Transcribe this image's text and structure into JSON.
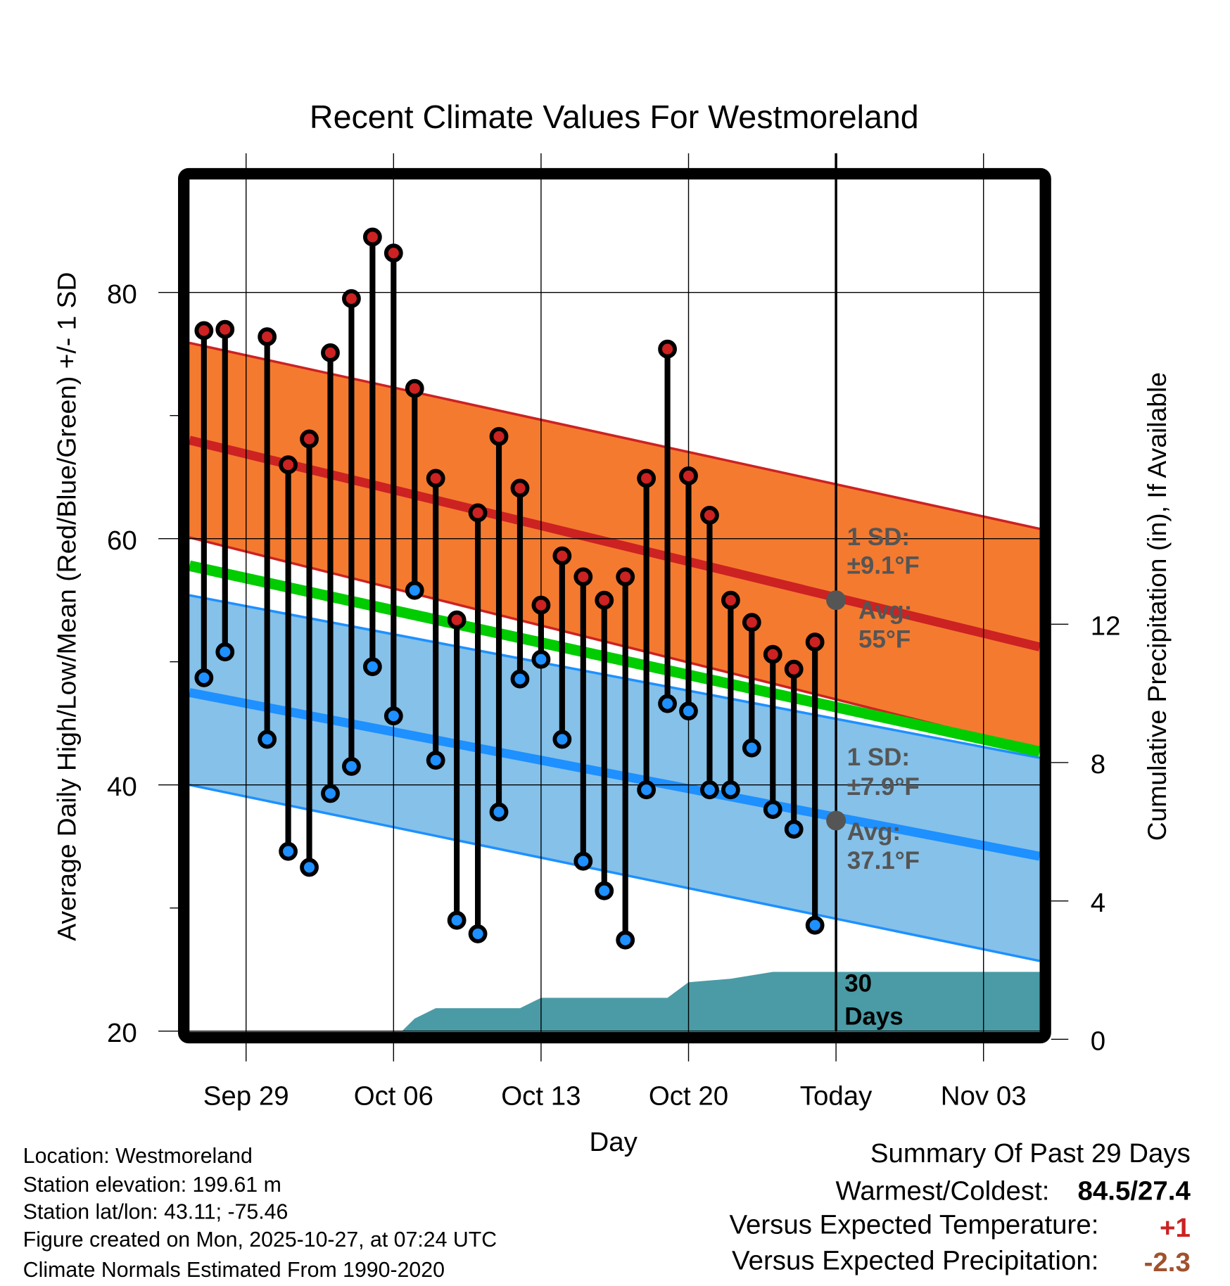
{
  "chart_data": {
    "type": "line",
    "title": "Recent Climate Values For Westmoreland",
    "xlabel": "Day",
    "ylabel": "Average Daily High/Low/Mean (Red/Blue/Green) +/- 1 SD",
    "ylabel_right": "Cumulative Precipitation (in), If Available",
    "x_unit": "days relative to Sep 29",
    "xlim": [
      -2.7,
      37.7
    ],
    "ylim": [
      20,
      90
    ],
    "ylim_right": [
      0,
      16.6
    ],
    "x_ticks": [
      {
        "day": 0,
        "label": "Sep 29"
      },
      {
        "day": 7,
        "label": "Oct 06"
      },
      {
        "day": 14,
        "label": "Oct 13"
      },
      {
        "day": 21,
        "label": "Oct 20"
      },
      {
        "day": 28,
        "label": "Today"
      },
      {
        "day": 35,
        "label": "Nov 03"
      }
    ],
    "y_ticks": [
      20,
      40,
      60,
      80
    ],
    "y_minor_ticks": [
      30,
      50,
      70
    ],
    "y_ticks_right": [
      0,
      4,
      8,
      12
    ],
    "grid": true,
    "today_day": 28,
    "days": [
      -2,
      -1,
      1,
      2,
      3,
      4,
      5,
      6,
      7,
      8,
      9,
      10,
      11,
      12,
      13,
      14,
      15,
      16,
      17,
      18,
      19,
      20,
      21,
      22,
      23,
      24,
      25,
      26,
      27
    ],
    "highs": [
      76.9,
      77.0,
      76.4,
      66.0,
      68.1,
      75.1,
      79.5,
      84.5,
      83.2,
      72.2,
      64.9,
      53.4,
      62.1,
      68.3,
      64.1,
      54.6,
      58.6,
      56.9,
      55.0,
      56.9,
      64.9,
      75.4,
      65.1,
      61.9,
      55.0,
      53.2,
      50.6,
      49.4,
      51.6
    ],
    "lows": [
      48.7,
      50.8,
      43.7,
      34.6,
      33.3,
      39.3,
      41.5,
      49.6,
      45.6,
      55.8,
      42.0,
      29.0,
      27.9,
      37.8,
      48.6,
      50.2,
      43.7,
      33.8,
      31.4,
      27.4,
      39.6,
      46.6,
      46.0,
      39.6,
      39.6,
      43.0,
      38.0,
      36.4,
      28.6
    ],
    "normals": {
      "high_avg": [
        68.0,
        51.2
      ],
      "high_upper": [
        75.9,
        60.8
      ],
      "high_lower": [
        60.1,
        42.8
      ],
      "mean": [
        57.8,
        42.7
      ],
      "low_avg": [
        47.5,
        34.2
      ],
      "low_upper": [
        55.4,
        42.2
      ],
      "low_lower": [
        40.0,
        25.7
      ]
    },
    "precip": {
      "days": [
        7.4,
        8,
        9,
        13,
        14,
        20,
        21,
        23,
        25,
        37.7
      ],
      "values": [
        0,
        0.6,
        0.9,
        0.9,
        1.2,
        1.2,
        1.65,
        1.75,
        1.95,
        1.95
      ]
    },
    "today_high_avg": 55,
    "today_low_avg": 37.1,
    "annotations": {
      "high_sd_line1": "1 SD:",
      "high_sd_line2": "±9.1°F",
      "high_avg_line1": "Avg:",
      "high_avg_line2": "55°F",
      "low_sd_line1": "1 SD:",
      "low_sd_line2": "±7.9°F",
      "low_avg_line1": "Avg:",
      "low_avg_line2": "37.1°F",
      "precip_line1": "30",
      "precip_line2": "Days"
    }
  },
  "colors": {
    "orange_band": "#F47A30",
    "red": "#CC2222",
    "green": "#00CC00",
    "blue_band": "#85C1E9",
    "blue": "#1E90FF",
    "teal": "#4A9BA5",
    "positive": "#CC2222",
    "precip_deficit": "#A0522D"
  },
  "info": {
    "location": "Location: Westmoreland",
    "elevation": "Station elevation: 199.61 m",
    "latlon": "Station lat/lon: 43.11; -75.46",
    "created": "Figure created on Mon, 2025-10-27, at 07:24 UTC",
    "normals": "Climate Normals Estimated From 1990-2020"
  },
  "summary": {
    "title": "Summary Of Past 29 Days",
    "warm_cold_label": "Warmest/Coldest:",
    "warm_cold_value": "84.5/27.4",
    "temp_label": "Versus Expected Temperature:",
    "temp_value": "+1",
    "precip_label": "Versus Expected Precipitation:",
    "precip_value": "-2.3"
  }
}
